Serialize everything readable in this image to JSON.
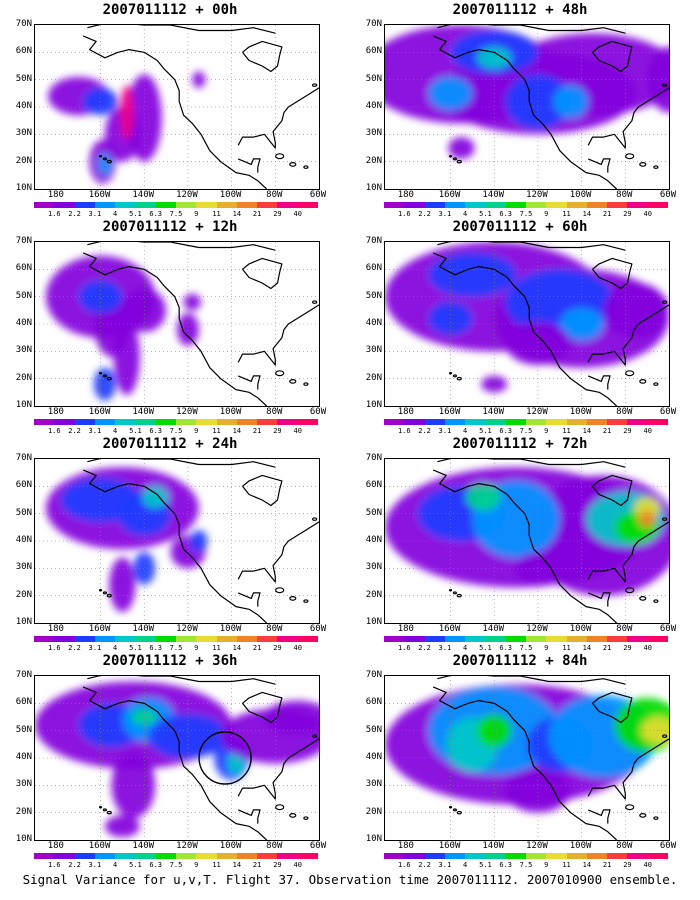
{
  "panels": [
    {
      "title": "2007011112 + 00h"
    },
    {
      "title": "2007011112 + 48h"
    },
    {
      "title": "2007011112 + 12h"
    },
    {
      "title": "2007011112 + 60h"
    },
    {
      "title": "2007011112 + 24h"
    },
    {
      "title": "2007011112 + 72h"
    },
    {
      "title": "2007011112 + 36h"
    },
    {
      "title": "2007011112 + 84h"
    }
  ],
  "lat_labels": [
    "70N",
    "60N",
    "50N",
    "40N",
    "30N",
    "20N",
    "10N"
  ],
  "lon_labels": [
    "180",
    "160W",
    "140W",
    "120W",
    "100W",
    "80W",
    "60W"
  ],
  "colorbar": {
    "labels": [
      "1.6",
      "2.2",
      "3.1",
      "4",
      "5.1",
      "6.3",
      "7.5",
      "9",
      "11",
      "14",
      "21",
      "29",
      "40"
    ],
    "colors": [
      "#a000c8",
      "#8200dc",
      "#1e3cff",
      "#0096ff",
      "#00c8c8",
      "#00d28c",
      "#00dc00",
      "#a0e632",
      "#e6dc32",
      "#e6af2d",
      "#f08228",
      "#fa3c3c",
      "#f00082"
    ]
  },
  "caption": "Signal Variance for u,v,T. Flight 37. Observation time 2007011112. 2007010900 ensemble."
}
